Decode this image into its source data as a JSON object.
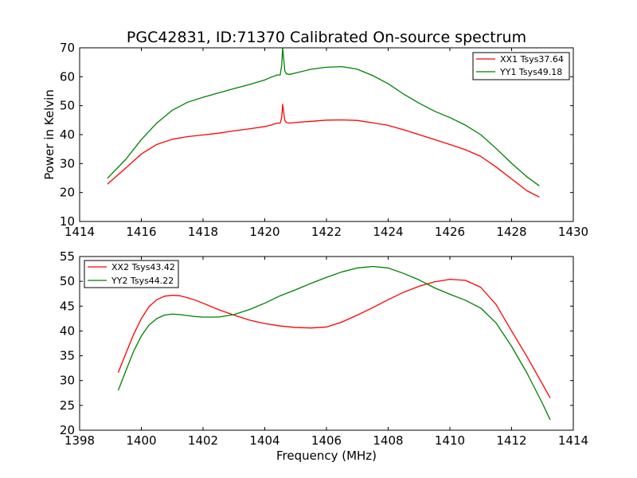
{
  "chart_data": [
    {
      "type": "line",
      "title": "PGC42831, ID:71370 Calibrated On-source spectrum",
      "xlabel": "",
      "ylabel": "Power in Kelvin",
      "xlim": [
        1414,
        1430
      ],
      "ylim": [
        10,
        70
      ],
      "xticks": [
        "1414",
        "1416",
        "1418",
        "1420",
        "1422",
        "1424",
        "1426",
        "1428",
        "1430"
      ],
      "yticks": [
        "10",
        "20",
        "30",
        "40",
        "50",
        "60",
        "70"
      ],
      "grid": false,
      "legend_position": "top-right",
      "series": [
        {
          "name": "XX1 Tsys37.64",
          "color": "#ff0000",
          "x": [
            1414.9,
            1415.5,
            1416.0,
            1416.5,
            1417.0,
            1417.5,
            1418.0,
            1418.5,
            1419.0,
            1419.5,
            1420.0,
            1420.2,
            1420.4,
            1420.5,
            1420.55,
            1420.58,
            1420.62,
            1420.65,
            1420.7,
            1420.8,
            1421.0,
            1421.5,
            1422.0,
            1422.5,
            1423.0,
            1423.5,
            1424.0,
            1424.5,
            1425.0,
            1425.5,
            1426.0,
            1426.5,
            1427.0,
            1427.5,
            1428.0,
            1428.5,
            1428.9
          ],
          "y": [
            22.9,
            28.5,
            33.3,
            36.6,
            38.4,
            39.3,
            39.9,
            40.5,
            41.3,
            42.0,
            42.8,
            43.3,
            44.0,
            44.0,
            46.0,
            50.5,
            47.0,
            45.0,
            44.2,
            44.0,
            44.2,
            44.6,
            45.0,
            45.1,
            44.9,
            44.1,
            43.2,
            41.7,
            40.0,
            38.3,
            36.6,
            34.8,
            32.5,
            28.8,
            24.7,
            20.6,
            18.4
          ]
        },
        {
          "name": "YY1 Tsys49.18",
          "color": "#008000",
          "x": [
            1414.9,
            1415.5,
            1416.0,
            1416.5,
            1417.0,
            1417.5,
            1418.0,
            1418.5,
            1419.0,
            1419.5,
            1420.0,
            1420.2,
            1420.4,
            1420.5,
            1420.55,
            1420.58,
            1420.62,
            1420.65,
            1420.7,
            1420.8,
            1421.0,
            1421.5,
            1422.0,
            1422.5,
            1423.0,
            1423.5,
            1424.0,
            1424.5,
            1425.0,
            1425.5,
            1426.0,
            1426.5,
            1427.0,
            1427.5,
            1428.0,
            1428.5,
            1428.9
          ],
          "y": [
            24.9,
            31.5,
            38.3,
            44.0,
            48.4,
            51.2,
            52.9,
            54.4,
            55.9,
            57.3,
            58.9,
            59.8,
            60.6,
            60.6,
            64.0,
            70.0,
            65.5,
            62.0,
            61.0,
            60.8,
            61.3,
            62.6,
            63.3,
            63.5,
            62.6,
            60.4,
            57.6,
            54.0,
            50.9,
            48.1,
            45.9,
            43.3,
            40.0,
            35.2,
            30.1,
            25.4,
            22.3
          ]
        }
      ]
    },
    {
      "type": "line",
      "title": "",
      "xlabel": "Frequency (MHz)",
      "ylabel": "",
      "xlim": [
        1398,
        1414
      ],
      "ylim": [
        20,
        55
      ],
      "xticks": [
        "1398",
        "1400",
        "1402",
        "1404",
        "1406",
        "1408",
        "1410",
        "1412",
        "1414"
      ],
      "yticks": [
        "20",
        "25",
        "30",
        "35",
        "40",
        "45",
        "50",
        "55"
      ],
      "grid": false,
      "legend_position": "top-left",
      "series": [
        {
          "name": "XX2 Tsys43.42",
          "color": "#ff0000",
          "x": [
            1399.25,
            1399.5,
            1399.75,
            1400.0,
            1400.25,
            1400.5,
            1400.75,
            1401.0,
            1401.25,
            1401.5,
            1401.75,
            1402.0,
            1402.5,
            1403.0,
            1403.5,
            1404.0,
            1404.5,
            1405.0,
            1405.5,
            1406.0,
            1406.5,
            1407.0,
            1407.5,
            1408.0,
            1408.5,
            1409.0,
            1409.5,
            1410.0,
            1410.5,
            1411.0,
            1411.5,
            1412.0,
            1412.5,
            1413.0,
            1413.25
          ],
          "y": [
            31.6,
            35.5,
            39.3,
            42.5,
            44.9,
            46.3,
            47.0,
            47.2,
            47.1,
            46.7,
            46.2,
            45.6,
            44.3,
            43.2,
            42.2,
            41.5,
            41.0,
            40.7,
            40.6,
            40.8,
            41.8,
            43.2,
            44.7,
            46.3,
            47.8,
            49.0,
            49.9,
            50.4,
            50.2,
            48.8,
            45.3,
            40.0,
            34.8,
            29.3,
            26.5
          ]
        },
        {
          "name": "YY2 Tsys44.22",
          "color": "#008000",
          "x": [
            1399.25,
            1399.5,
            1399.75,
            1400.0,
            1400.25,
            1400.5,
            1400.75,
            1401.0,
            1401.25,
            1401.5,
            1401.75,
            1402.0,
            1402.5,
            1403.0,
            1403.5,
            1404.0,
            1404.5,
            1405.0,
            1405.5,
            1406.0,
            1406.5,
            1407.0,
            1407.5,
            1408.0,
            1408.5,
            1409.0,
            1409.5,
            1410.0,
            1410.5,
            1411.0,
            1411.5,
            1412.0,
            1412.5,
            1413.0,
            1413.25
          ],
          "y": [
            28.0,
            32.0,
            35.9,
            39.0,
            41.2,
            42.5,
            43.2,
            43.4,
            43.3,
            43.1,
            42.9,
            42.8,
            42.8,
            43.3,
            44.3,
            45.6,
            47.1,
            48.3,
            49.6,
            50.8,
            51.9,
            52.7,
            53.0,
            52.7,
            51.6,
            50.3,
            48.7,
            47.4,
            46.2,
            44.6,
            41.6,
            36.9,
            31.5,
            25.4,
            22.1
          ]
        }
      ]
    }
  ]
}
